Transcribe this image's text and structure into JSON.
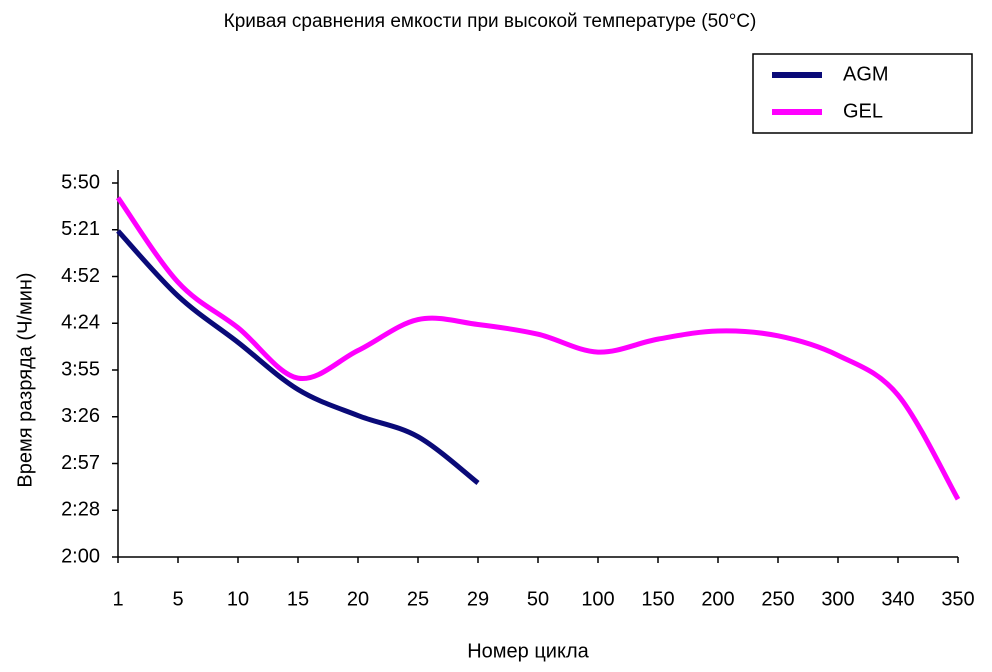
{
  "chart_data": {
    "type": "line",
    "title": "Кривая сравнения емкости при высокой температуре (50°C)",
    "x_label": "Номер цикла",
    "y_label": "Время разряда (Ч/мин)",
    "categories": [
      1,
      5,
      10,
      15,
      20,
      25,
      29,
      50,
      100,
      150,
      200,
      250,
      300,
      340,
      350
    ],
    "series": [
      {
        "name": "AGM",
        "color": "#0a0a78",
        "values": [
          320.5,
          280.5,
          252,
          223,
          207,
          194,
          165.5,
          null,
          null,
          null,
          null,
          null,
          null,
          null,
          null
        ]
      },
      {
        "name": "GEL",
        "color": "#ff00ff",
        "values": [
          341,
          289,
          261,
          230,
          247,
          266,
          263,
          257,
          246,
          254,
          259,
          256,
          244,
          219.6,
          155.5
        ]
      }
    ],
    "ylim": [
      120,
      350
    ],
    "yticks": [
      {
        "value": 120,
        "label": "2:00"
      },
      {
        "value": 148.75,
        "label": "2:28"
      },
      {
        "value": 177.5,
        "label": "2:57"
      },
      {
        "value": 206.25,
        "label": "3:26"
      },
      {
        "value": 235,
        "label": "3:55"
      },
      {
        "value": 263.75,
        "label": "4:24"
      },
      {
        "value": 292.5,
        "label": "4:52"
      },
      {
        "value": 321.25,
        "label": "5:21"
      },
      {
        "value": 350,
        "label": "5:50"
      }
    ],
    "legend": "top-right",
    "grid": false
  }
}
